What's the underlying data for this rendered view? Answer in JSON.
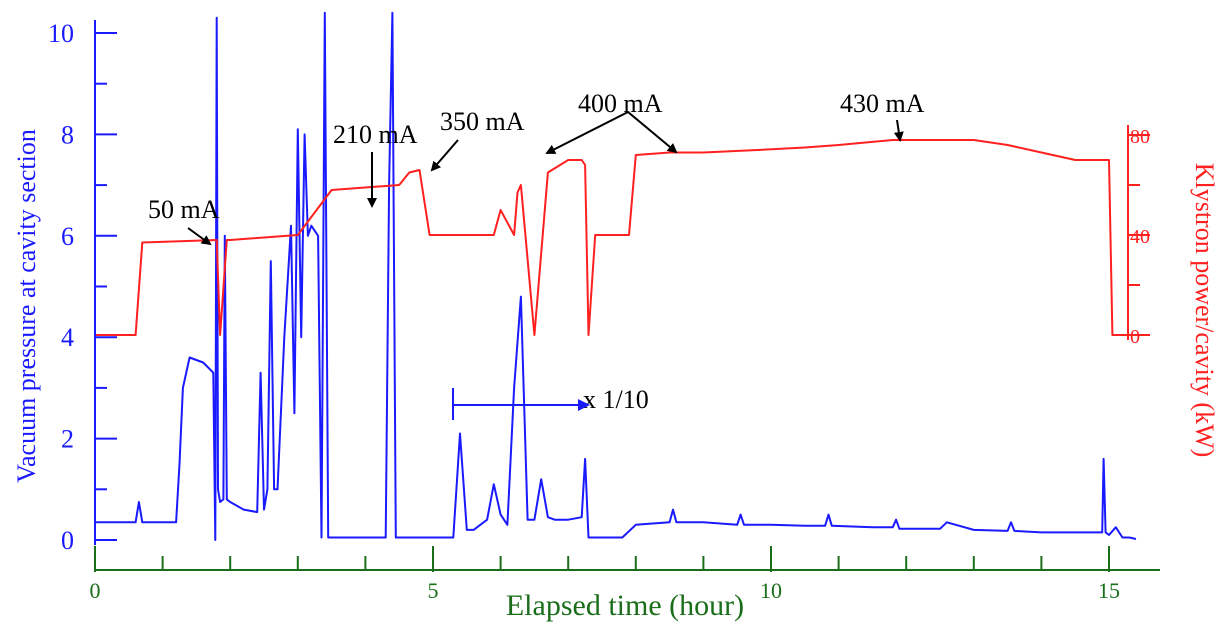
{
  "chart_data": {
    "type": "line",
    "title": "",
    "xlabel": "Elapsed time (hour)",
    "ylabel_left": "Vacuum pressure at cavity section",
    "ylabel_right": "Klystron power/cavity  (kW)",
    "xlim": [
      0,
      15.5
    ],
    "ylim_left": [
      0,
      10.4
    ],
    "ylim_right": [
      0,
      84
    ],
    "x_ticks": [
      0,
      5,
      10,
      15
    ],
    "y_ticks_left": [
      0,
      2,
      4,
      6,
      8,
      10
    ],
    "y_ticks_right": [
      0,
      40,
      80
    ],
    "grid": false,
    "colors": {
      "pressure": "#1a1aff",
      "power": "#ff2020",
      "axis_x": "#1a6e1a",
      "annotation": "#000000"
    },
    "series": [
      {
        "axis": "left",
        "color": "#1a1aff",
        "x": [
          0,
          0.6,
          0.65,
          0.7,
          1.2,
          1.25,
          1.3,
          1.4,
          1.6,
          1.75,
          1.78,
          1.8,
          1.82,
          1.85,
          1.9,
          1.92,
          1.95,
          2.0,
          2.2,
          2.4,
          2.45,
          2.5,
          2.55,
          2.6,
          2.65,
          2.7,
          2.8,
          2.9,
          2.95,
          3.0,
          3.05,
          3.1,
          3.15,
          3.2,
          3.3,
          3.35,
          3.4,
          3.45,
          3.6,
          4.0,
          4.3,
          4.35,
          4.4,
          4.45,
          4.5,
          4.55,
          4.6,
          5.3,
          5.4,
          5.5,
          5.6,
          5.7,
          5.8,
          5.9,
          6.0,
          6.1,
          6.2,
          6.3,
          6.4,
          6.5,
          6.6,
          6.7,
          6.8,
          7.0,
          7.2,
          7.25,
          7.3,
          7.5,
          7.8,
          8.0,
          8.5,
          8.55,
          8.6,
          9.0,
          9.5,
          9.55,
          9.6,
          10.0,
          10.5,
          10.8,
          10.85,
          10.9,
          11.5,
          11.8,
          11.85,
          11.9,
          12.5,
          12.6,
          13.0,
          13.5,
          13.55,
          13.6,
          14.0,
          14.5,
          14.9,
          14.92,
          14.95,
          15.0,
          15.1,
          15.2,
          15.3,
          15.4
        ],
        "values": [
          0.35,
          0.35,
          0.75,
          0.35,
          0.35,
          1.5,
          3.0,
          3.6,
          3.5,
          3.3,
          0.0,
          10.3,
          1.0,
          0.75,
          0.8,
          6.0,
          0.8,
          0.75,
          0.6,
          0.55,
          3.3,
          0.6,
          1.0,
          5.5,
          1.0,
          1.0,
          4.0,
          6.2,
          2.5,
          8.1,
          4.0,
          8.0,
          6.0,
          6.2,
          6.0,
          0.05,
          10.4,
          0.05,
          0.05,
          0.05,
          0.05,
          7.0,
          10.4,
          0.05,
          0.05,
          0.05,
          0.05,
          0.05,
          2.1,
          0.2,
          0.2,
          0.3,
          0.4,
          1.1,
          0.5,
          0.3,
          3.0,
          4.8,
          0.4,
          0.4,
          1.2,
          0.45,
          0.4,
          0.4,
          0.45,
          1.6,
          0.05,
          0.05,
          0.05,
          0.3,
          0.35,
          0.6,
          0.35,
          0.35,
          0.3,
          0.5,
          0.3,
          0.3,
          0.28,
          0.28,
          0.5,
          0.28,
          0.25,
          0.25,
          0.4,
          0.22,
          0.22,
          0.35,
          0.2,
          0.18,
          0.35,
          0.18,
          0.15,
          0.15,
          0.15,
          1.6,
          0.15,
          0.1,
          0.25,
          0.05,
          0.05,
          0.02
        ]
      },
      {
        "axis": "right",
        "color": "#ff2020",
        "x": [
          0,
          0.6,
          0.7,
          1.8,
          1.85,
          1.95,
          2.0,
          3.0,
          3.5,
          4.5,
          4.65,
          4.8,
          4.95,
          5.9,
          6.0,
          6.2,
          6.25,
          6.3,
          6.5,
          6.7,
          7.0,
          7.2,
          7.25,
          7.3,
          7.4,
          7.5,
          7.9,
          8.0,
          8.5,
          9.0,
          9.8,
          10.5,
          11.0,
          11.8,
          12.5,
          13.0,
          13.5,
          14.0,
          14.5,
          15.0,
          15.05,
          15.4
        ],
        "values": [
          0,
          0,
          37,
          38,
          0,
          38,
          38,
          40,
          58,
          60,
          65,
          66,
          40,
          40,
          50,
          40,
          57,
          60,
          0,
          65,
          70,
          70,
          68,
          0,
          40,
          40,
          40,
          72,
          73,
          73,
          74,
          75,
          76,
          78,
          78,
          78,
          76,
          73,
          70,
          70,
          0,
          0
        ]
      }
    ],
    "annotations": [
      {
        "text": "50 mA"
      },
      {
        "text": "210 mA"
      },
      {
        "text": "350 mA"
      },
      {
        "text": "400 mA"
      },
      {
        "text": "430 mA"
      },
      {
        "text": "x 1/10"
      }
    ]
  }
}
